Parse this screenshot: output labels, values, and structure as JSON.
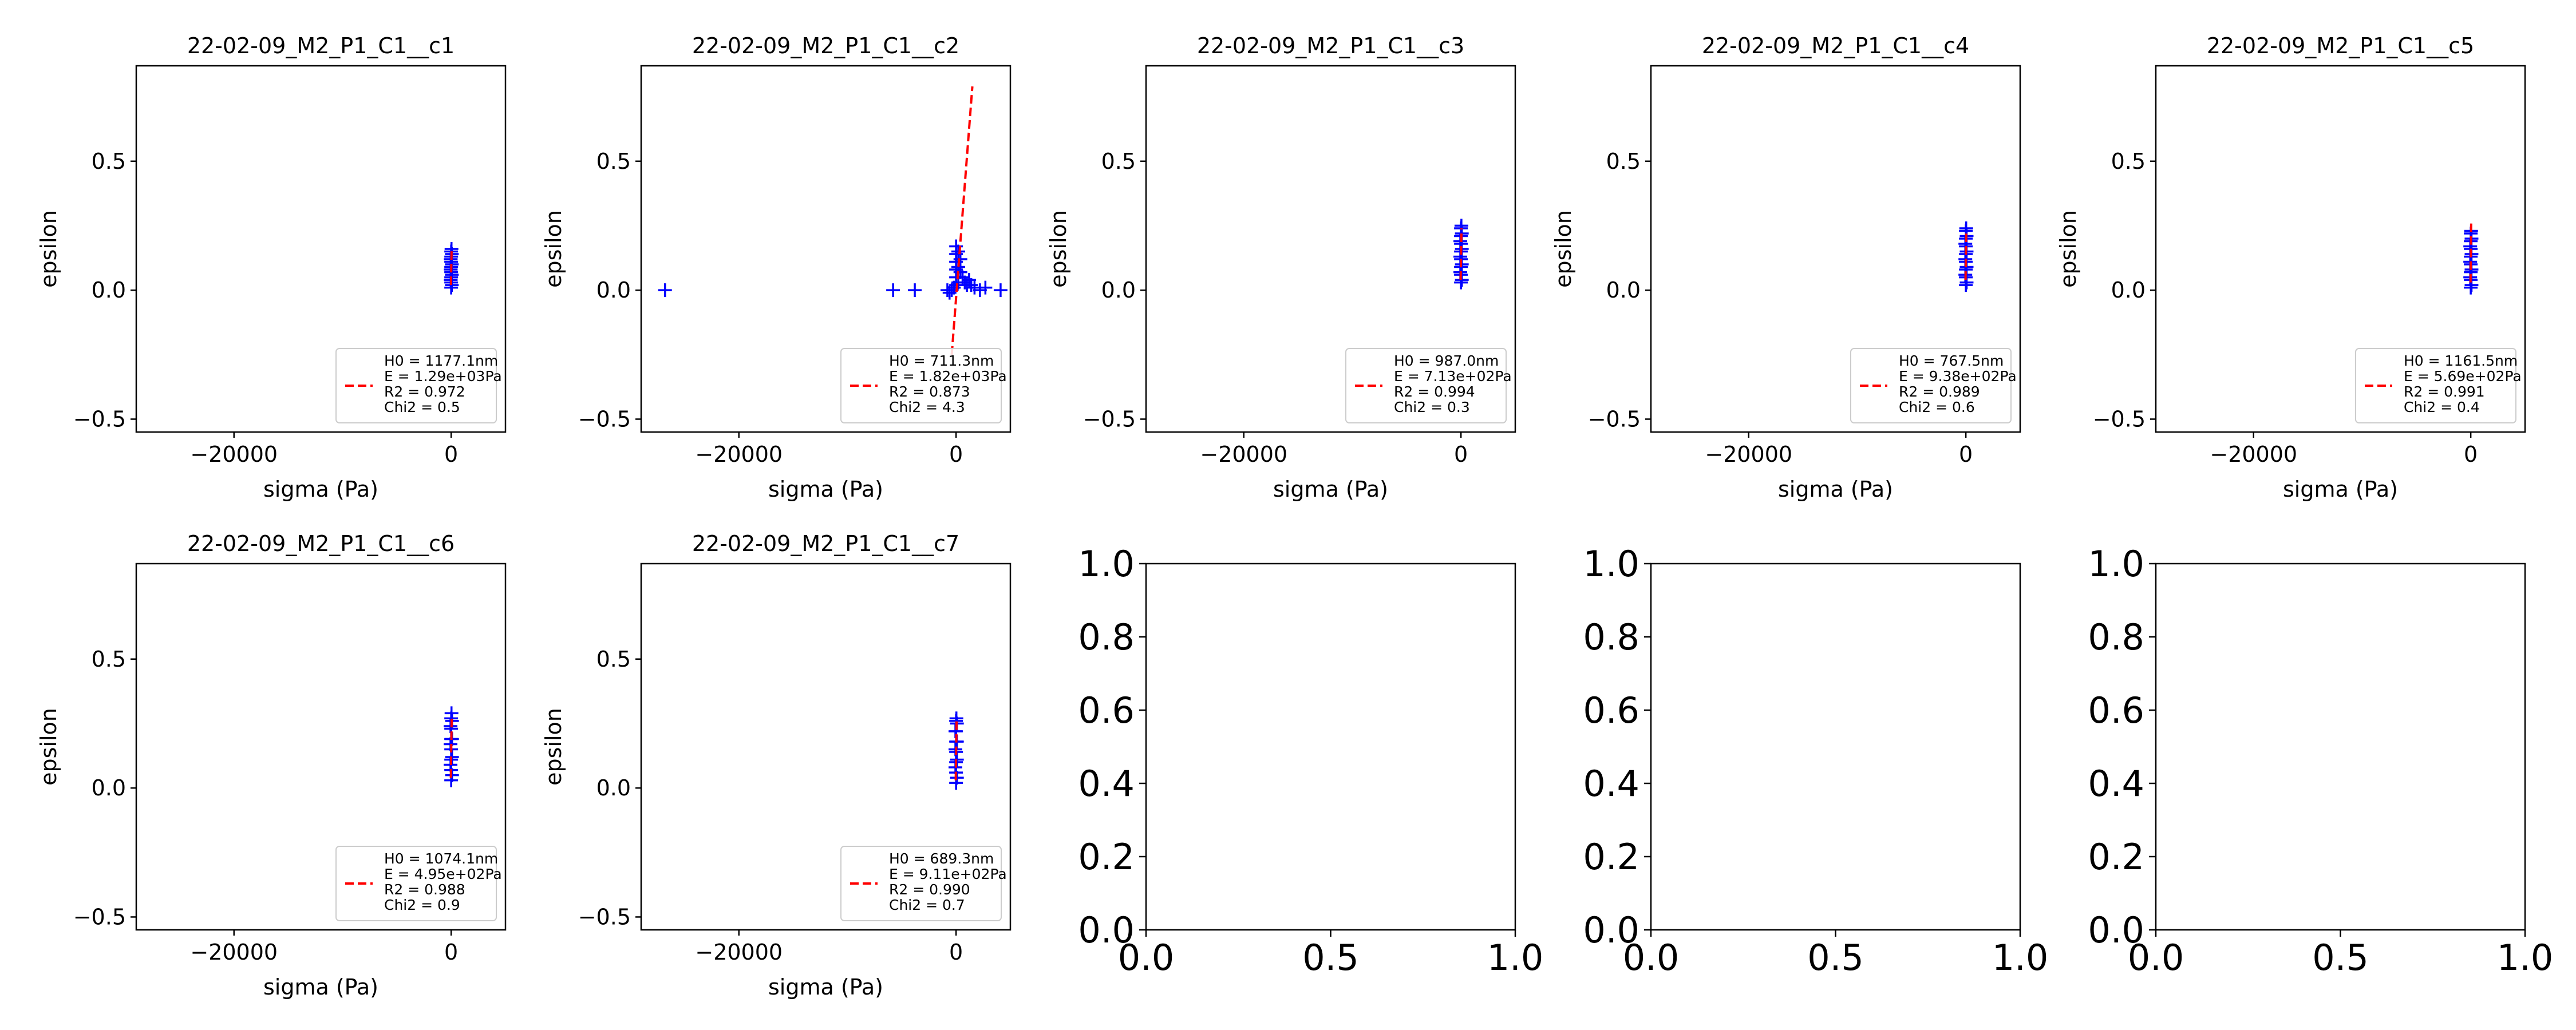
{
  "chart_data": [
    {
      "type": "scatter",
      "title": "22-02-09_M2_P1_C1__c1",
      "xlabel": "sigma (Pa)",
      "ylabel": "epsilon",
      "xlim": [
        -29000,
        5000
      ],
      "ylim": [
        -0.55,
        0.87
      ],
      "xticks": [
        -20000,
        0
      ],
      "xtick_labels": [
        "−20000",
        "0"
      ],
      "yticks": [
        -0.5,
        0.0,
        0.5
      ],
      "ytick_labels": [
        "−0.5",
        "0.0",
        "0.5"
      ],
      "series": [
        {
          "marker": "+",
          "color": "#0000ff",
          "points": [
            [
              0,
              0.01
            ],
            [
              0,
              0.03
            ],
            [
              0,
              0.05
            ],
            [
              0,
              0.07
            ],
            [
              0,
              0.09
            ],
            [
              0,
              0.11
            ],
            [
              0,
              0.13
            ],
            [
              0,
              0.15
            ],
            [
              60,
              0.02
            ],
            [
              60,
              0.06
            ],
            [
              60,
              0.1
            ],
            [
              60,
              0.14
            ],
            [
              -40,
              0.04
            ],
            [
              -40,
              0.08
            ],
            [
              -40,
              0.12
            ],
            [
              30,
              0.16
            ]
          ]
        },
        {
          "name": "H0 = 1177.1nm\nE = 1.29e+03Pa\nR2 = 0.972\nChi2 = 0.5",
          "style": "dashed",
          "color": "#ff0000",
          "line": [
            [
              -20,
              0.02
            ],
            [
              40,
              0.16
            ]
          ]
        }
      ],
      "legend": {
        "position": "lower right",
        "lines": [
          "H0 = 1177.1nm",
          "E = 1.29e+03Pa",
          "R2 = 0.972",
          "Chi2 = 0.5"
        ]
      }
    },
    {
      "type": "scatter",
      "title": "22-02-09_M2_P1_C1__c2",
      "xlabel": "sigma (Pa)",
      "ylabel": "epsilon",
      "xlim": [
        -29000,
        5000
      ],
      "ylim": [
        -0.55,
        0.87
      ],
      "xticks": [
        -20000,
        0
      ],
      "xtick_labels": [
        "−20000",
        "0"
      ],
      "yticks": [
        -0.5,
        0.0,
        0.5
      ],
      "ytick_labels": [
        "−0.5",
        "0.0",
        "0.5"
      ],
      "series": [
        {
          "marker": "+",
          "color": "#0000ff",
          "points": [
            [
              -26800,
              0.0
            ],
            [
              -5800,
              0.0
            ],
            [
              -3800,
              0.0
            ],
            [
              -800,
              0.0
            ],
            [
              -600,
              -0.01
            ],
            [
              -400,
              0.0
            ],
            [
              -200,
              0.01
            ],
            [
              0,
              0.02
            ],
            [
              0,
              0.05
            ],
            [
              0,
              0.08
            ],
            [
              0,
              0.11
            ],
            [
              0,
              0.14
            ],
            [
              0,
              0.17
            ],
            [
              200,
              0.03
            ],
            [
              200,
              0.09
            ],
            [
              200,
              0.15
            ],
            [
              400,
              0.07
            ],
            [
              400,
              0.12
            ],
            [
              600,
              0.05
            ],
            [
              800,
              0.03
            ],
            [
              1000,
              0.02
            ],
            [
              1200,
              0.04
            ],
            [
              1400,
              0.02
            ],
            [
              1700,
              0.01
            ],
            [
              2200,
              0.0
            ],
            [
              2700,
              0.01
            ],
            [
              4100,
              0.0
            ]
          ]
        },
        {
          "name": "H0 = 711.3nm\nE = 1.82e+03Pa\nR2 = 0.873\nChi2 = 4.3",
          "style": "dashed",
          "color": "#ff0000",
          "line": [
            [
              -400,
              -0.25
            ],
            [
              1500,
              0.79
            ]
          ]
        }
      ],
      "legend": {
        "position": "lower right",
        "lines": [
          "H0 = 711.3nm",
          "E = 1.82e+03Pa",
          "R2 = 0.873",
          "Chi2 = 4.3"
        ]
      }
    },
    {
      "type": "scatter",
      "title": "22-02-09_M2_P1_C1__c3",
      "xlabel": "sigma (Pa)",
      "ylabel": "epsilon",
      "xlim": [
        -29000,
        5000
      ],
      "ylim": [
        -0.55,
        0.87
      ],
      "xticks": [
        -20000,
        0
      ],
      "xtick_labels": [
        "−20000",
        "0"
      ],
      "yticks": [
        -0.5,
        0.0,
        0.5
      ],
      "ytick_labels": [
        "−0.5",
        "0.0",
        "0.5"
      ],
      "series": [
        {
          "marker": "+",
          "color": "#0000ff",
          "points": [
            [
              0,
              0.03
            ],
            [
              0,
              0.06
            ],
            [
              0,
              0.09
            ],
            [
              0,
              0.12
            ],
            [
              0,
              0.15
            ],
            [
              0,
              0.18
            ],
            [
              0,
              0.21
            ],
            [
              0,
              0.24
            ],
            [
              80,
              0.04
            ],
            [
              80,
              0.1
            ],
            [
              80,
              0.16
            ],
            [
              80,
              0.22
            ],
            [
              -60,
              0.07
            ],
            [
              -60,
              0.13
            ],
            [
              -60,
              0.19
            ],
            [
              40,
              0.25
            ]
          ]
        },
        {
          "name": "H0 = 987.0nm\nE = 7.13e+02Pa\nR2 = 0.994\nChi2 = 0.3",
          "style": "dashed",
          "color": "#ff0000",
          "line": [
            [
              -30,
              0.04
            ],
            [
              50,
              0.24
            ]
          ]
        }
      ],
      "legend": {
        "position": "lower right",
        "lines": [
          "H0 = 987.0nm",
          "E = 7.13e+02Pa",
          "R2 = 0.994",
          "Chi2 = 0.3"
        ]
      }
    },
    {
      "type": "scatter",
      "title": "22-02-09_M2_P1_C1__c4",
      "xlabel": "sigma (Pa)",
      "ylabel": "epsilon",
      "xlim": [
        -29000,
        5000
      ],
      "ylim": [
        -0.55,
        0.87
      ],
      "xticks": [
        -20000,
        0
      ],
      "xtick_labels": [
        "−20000",
        "0"
      ],
      "yticks": [
        -0.5,
        0.0,
        0.5
      ],
      "ytick_labels": [
        "−0.5",
        "0.0",
        "0.5"
      ],
      "series": [
        {
          "marker": "+",
          "color": "#0000ff",
          "points": [
            [
              0,
              0.02
            ],
            [
              0,
              0.05
            ],
            [
              0,
              0.08
            ],
            [
              0,
              0.11
            ],
            [
              0,
              0.14
            ],
            [
              0,
              0.17
            ],
            [
              0,
              0.2
            ],
            [
              0,
              0.23
            ],
            [
              70,
              0.03
            ],
            [
              70,
              0.09
            ],
            [
              70,
              0.15
            ],
            [
              70,
              0.21
            ],
            [
              -50,
              0.06
            ],
            [
              -50,
              0.12
            ],
            [
              -50,
              0.18
            ],
            [
              30,
              0.24
            ]
          ]
        },
        {
          "name": "H0 = 767.5nm\nE = 9.38e+02Pa\nR2 = 0.989\nChi2 = 0.6",
          "style": "dashed",
          "color": "#ff0000",
          "line": [
            [
              -30,
              0.04
            ],
            [
              40,
              0.23
            ]
          ]
        }
      ],
      "legend": {
        "position": "lower right",
        "lines": [
          "H0 = 767.5nm",
          "E = 9.38e+02Pa",
          "R2 = 0.989",
          "Chi2 = 0.6"
        ]
      }
    },
    {
      "type": "scatter",
      "title": "22-02-09_M2_P1_C1__c5",
      "xlabel": "sigma (Pa)",
      "ylabel": "epsilon",
      "xlim": [
        -29000,
        5000
      ],
      "ylim": [
        -0.55,
        0.87
      ],
      "xticks": [
        -20000,
        0
      ],
      "xtick_labels": [
        "−20000",
        "0"
      ],
      "yticks": [
        -0.5,
        0.0,
        0.5
      ],
      "ytick_labels": [
        "−0.5",
        "0.0",
        "0.5"
      ],
      "series": [
        {
          "marker": "+",
          "color": "#0000ff",
          "points": [
            [
              0,
              0.01
            ],
            [
              0,
              0.04
            ],
            [
              0,
              0.07
            ],
            [
              0,
              0.1
            ],
            [
              0,
              0.13
            ],
            [
              0,
              0.16
            ],
            [
              0,
              0.19
            ],
            [
              0,
              0.22
            ],
            [
              70,
              0.02
            ],
            [
              70,
              0.08
            ],
            [
              70,
              0.14
            ],
            [
              70,
              0.2
            ],
            [
              -50,
              0.05
            ],
            [
              -50,
              0.11
            ],
            [
              -50,
              0.17
            ],
            [
              30,
              0.23
            ]
          ]
        },
        {
          "name": "H0 = 1161.5nm\nE = 5.69e+02Pa\nR2 = 0.991\nChi2 = 0.4",
          "style": "dashed",
          "color": "#ff0000",
          "line": [
            [
              -20,
              0.03
            ],
            [
              40,
              0.26
            ]
          ]
        }
      ],
      "legend": {
        "position": "lower right",
        "lines": [
          "H0 = 1161.5nm",
          "E = 5.69e+02Pa",
          "R2 = 0.991",
          "Chi2 = 0.4"
        ]
      }
    },
    {
      "type": "scatter",
      "title": "22-02-09_M2_P1_C1__c6",
      "xlabel": "sigma (Pa)",
      "ylabel": "epsilon",
      "xlim": [
        -29000,
        5000
      ],
      "ylim": [
        -0.55,
        0.87
      ],
      "xticks": [
        -20000,
        0
      ],
      "xtick_labels": [
        "−20000",
        "0"
      ],
      "yticks": [
        -0.5,
        0.0,
        0.5
      ],
      "ytick_labels": [
        "−0.5",
        "0.0",
        "0.5"
      ],
      "series": [
        {
          "marker": "+",
          "color": "#0000ff",
          "points": [
            [
              0,
              0.03
            ],
            [
              0,
              0.07
            ],
            [
              0,
              0.11
            ],
            [
              0,
              0.15
            ],
            [
              0,
              0.19
            ],
            [
              0,
              0.23
            ],
            [
              0,
              0.27
            ],
            [
              80,
              0.05
            ],
            [
              80,
              0.12
            ],
            [
              80,
              0.19
            ],
            [
              80,
              0.26
            ],
            [
              -60,
              0.09
            ],
            [
              -60,
              0.17
            ],
            [
              -60,
              0.24
            ],
            [
              30,
              0.29
            ]
          ]
        },
        {
          "name": "H0 = 1074.1nm\nE = 4.95e+02Pa\nR2 = 0.988\nChi2 = 0.9",
          "style": "dashed",
          "color": "#ff0000",
          "line": [
            [
              -30,
              0.04
            ],
            [
              50,
              0.28
            ]
          ]
        }
      ],
      "legend": {
        "position": "lower right",
        "lines": [
          "H0 = 1074.1nm",
          "E = 4.95e+02Pa",
          "R2 = 0.988",
          "Chi2 = 0.9"
        ]
      }
    },
    {
      "type": "scatter",
      "title": "22-02-09_M2_P1_C1__c7",
      "xlabel": "sigma (Pa)",
      "ylabel": "epsilon",
      "xlim": [
        -29000,
        5000
      ],
      "ylim": [
        -0.55,
        0.87
      ],
      "xticks": [
        -20000,
        0
      ],
      "xtick_labels": [
        "−20000",
        "0"
      ],
      "yticks": [
        -0.5,
        0.0,
        0.5
      ],
      "ytick_labels": [
        "−0.5",
        "0.0",
        "0.5"
      ],
      "series": [
        {
          "marker": "+",
          "color": "#0000ff",
          "points": [
            [
              0,
              0.02
            ],
            [
              0,
              0.06
            ],
            [
              0,
              0.1
            ],
            [
              0,
              0.14
            ],
            [
              0,
              0.18
            ],
            [
              0,
              0.22
            ],
            [
              0,
              0.26
            ],
            [
              80,
              0.04
            ],
            [
              80,
              0.11
            ],
            [
              80,
              0.18
            ],
            [
              80,
              0.25
            ],
            [
              -60,
              0.08
            ],
            [
              -60,
              0.15
            ],
            [
              -60,
              0.22
            ],
            [
              30,
              0.27
            ]
          ]
        },
        {
          "name": "H0 = 689.3nm\nE = 9.11e+02Pa\nR2 = 0.990\nChi2 = 0.7",
          "style": "dashed",
          "color": "#ff0000",
          "line": [
            [
              -30,
              0.03
            ],
            [
              50,
              0.27
            ]
          ]
        }
      ],
      "legend": {
        "position": "lower right",
        "lines": [
          "H0 = 689.3nm",
          "E = 9.11e+02Pa",
          "R2 = 0.990",
          "Chi2 = 0.7"
        ]
      }
    },
    {
      "type": "scatter",
      "title": "",
      "xlabel": "",
      "ylabel": "",
      "empty": true,
      "xlim": [
        0,
        1
      ],
      "ylim": [
        0,
        1
      ],
      "xticks": [
        0.0,
        0.5,
        1.0
      ],
      "xtick_labels": [
        "0.0",
        "0.5",
        "1.0"
      ],
      "yticks": [
        0.0,
        0.2,
        0.4,
        0.6,
        0.8,
        1.0
      ],
      "ytick_labels": [
        "0.0",
        "0.2",
        "0.4",
        "0.6",
        "0.8",
        "1.0"
      ],
      "series": []
    },
    {
      "type": "scatter",
      "title": "",
      "xlabel": "",
      "ylabel": "",
      "empty": true,
      "xlim": [
        0,
        1
      ],
      "ylim": [
        0,
        1
      ],
      "xticks": [
        0.0,
        0.5,
        1.0
      ],
      "xtick_labels": [
        "0.0",
        "0.5",
        "1.0"
      ],
      "yticks": [
        0.0,
        0.2,
        0.4,
        0.6,
        0.8,
        1.0
      ],
      "ytick_labels": [
        "0.0",
        "0.2",
        "0.4",
        "0.6",
        "0.8",
        "1.0"
      ],
      "series": []
    },
    {
      "type": "scatter",
      "title": "",
      "xlabel": "",
      "ylabel": "",
      "empty": true,
      "xlim": [
        0,
        1
      ],
      "ylim": [
        0,
        1
      ],
      "xticks": [
        0.0,
        0.5,
        1.0
      ],
      "xtick_labels": [
        "0.0",
        "0.5",
        "1.0"
      ],
      "yticks": [
        0.0,
        0.2,
        0.4,
        0.6,
        0.8,
        1.0
      ],
      "ytick_labels": [
        "0.0",
        "0.2",
        "0.4",
        "0.6",
        "0.8",
        "1.0"
      ],
      "series": []
    }
  ]
}
